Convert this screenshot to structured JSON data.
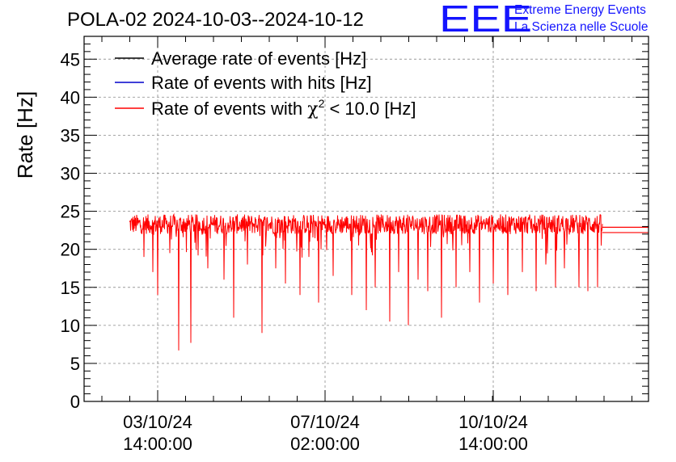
{
  "chart_data": {
    "type": "line",
    "title": "POLA-02 2024-10-03--2024-10-12",
    "ylabel": "Rate [Hz]",
    "xlabel": "",
    "ylim": [
      0,
      48
    ],
    "yticks": [
      "0",
      "5",
      "10",
      "15",
      "20",
      "25",
      "30",
      "35",
      "40",
      "45"
    ],
    "xticks": [
      {
        "date": "03/10/24",
        "time": "14:00:00"
      },
      {
        "date": "07/10/24",
        "time": "02:00:00"
      },
      {
        "date": "10/10/24",
        "time": "14:00:00"
      }
    ],
    "grid": true,
    "legend": [
      {
        "label": "Average rate of events [Hz]",
        "color": "#000000"
      },
      {
        "label": "Rate of events with hits [Hz]",
        "color": "#0000cc"
      },
      {
        "label_prefix": "Rate of events with ",
        "symbol": "χ",
        "sup": "2",
        "label_suffix": " < 10.0 [Hz]",
        "color": "#ff0000"
      }
    ],
    "series": [
      {
        "name": "Rate of events with χ2 < 10.0 [Hz]",
        "color": "#ff0000",
        "baseline": 23.3,
        "noise": 1.3,
        "flat_end_value": 22.5,
        "dips": [
          {
            "t": 0.03,
            "v": 19.0
          },
          {
            "t": 0.05,
            "v": 17.0
          },
          {
            "t": 0.06,
            "v": 14.0
          },
          {
            "t": 0.085,
            "v": 19.5
          },
          {
            "t": 0.105,
            "v": 6.7
          },
          {
            "t": 0.13,
            "v": 7.7
          },
          {
            "t": 0.165,
            "v": 17.5
          },
          {
            "t": 0.2,
            "v": 16.0
          },
          {
            "t": 0.22,
            "v": 11.0
          },
          {
            "t": 0.25,
            "v": 18.0
          },
          {
            "t": 0.28,
            "v": 9.0
          },
          {
            "t": 0.31,
            "v": 17.5
          },
          {
            "t": 0.33,
            "v": 15.5
          },
          {
            "t": 0.36,
            "v": 14.0
          },
          {
            "t": 0.38,
            "v": 19.0
          },
          {
            "t": 0.4,
            "v": 13.0
          },
          {
            "t": 0.43,
            "v": 16.5
          },
          {
            "t": 0.47,
            "v": 14.0
          },
          {
            "t": 0.5,
            "v": 12.0
          },
          {
            "t": 0.52,
            "v": 15.0
          },
          {
            "t": 0.55,
            "v": 10.5
          },
          {
            "t": 0.57,
            "v": 17.0
          },
          {
            "t": 0.59,
            "v": 10.0
          },
          {
            "t": 0.61,
            "v": 16.0
          },
          {
            "t": 0.63,
            "v": 14.5
          },
          {
            "t": 0.66,
            "v": 11.0
          },
          {
            "t": 0.69,
            "v": 15.0
          },
          {
            "t": 0.72,
            "v": 17.0
          },
          {
            "t": 0.74,
            "v": 13.0
          },
          {
            "t": 0.77,
            "v": 15.5
          },
          {
            "t": 0.8,
            "v": 14.0
          },
          {
            "t": 0.83,
            "v": 17.0
          },
          {
            "t": 0.86,
            "v": 14.5
          },
          {
            "t": 0.88,
            "v": 18.0
          },
          {
            "t": 0.9,
            "v": 15.0
          },
          {
            "t": 0.92,
            "v": 17.5
          },
          {
            "t": 0.95,
            "v": 15.0
          },
          {
            "t": 0.97,
            "v": 14.5
          },
          {
            "t": 0.99,
            "v": 15.0
          }
        ]
      }
    ]
  },
  "logo": {
    "mark": "EEE",
    "line1": "Extreme Energy Events",
    "line2": "La Scienza nelle Scuole"
  }
}
